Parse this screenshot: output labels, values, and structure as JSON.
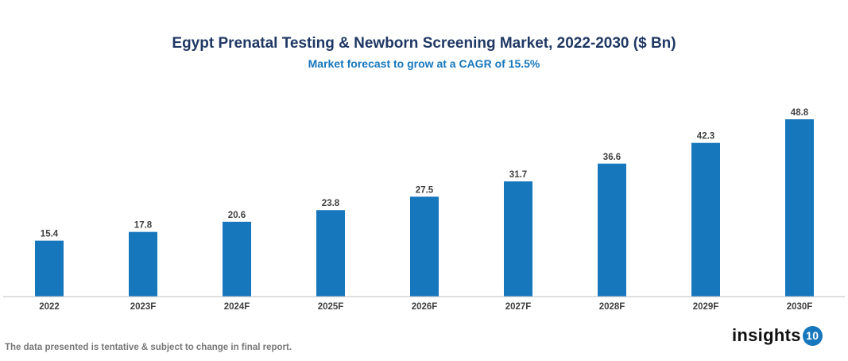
{
  "chart_data": {
    "type": "bar",
    "title": "Egypt Prenatal Testing & Newborn Screening Market, 2022-2030 ($ Bn)",
    "subtitle": "Market forecast to grow at a CAGR of 15.5%",
    "categories": [
      "2022",
      "2023F",
      "2024F",
      "2025F",
      "2026F",
      "2027F",
      "2028F",
      "2029F",
      "2030F"
    ],
    "values": [
      15.4,
      17.8,
      20.6,
      23.8,
      27.5,
      31.7,
      36.6,
      42.3,
      48.8
    ],
    "data_labels": [
      "15.4",
      "17.8",
      "20.6",
      "23.8",
      "27.5",
      "31.7",
      "36.6",
      "42.3",
      "48.8"
    ],
    "xlabel": "",
    "ylabel": "",
    "ylim": [
      0,
      50
    ],
    "grid": false,
    "y_axis_visible": false,
    "bar_color": "#1777bd"
  },
  "footnote": "The data presented is tentative & subject to change in final report.",
  "logo": {
    "text": "insights",
    "badge": "10"
  }
}
